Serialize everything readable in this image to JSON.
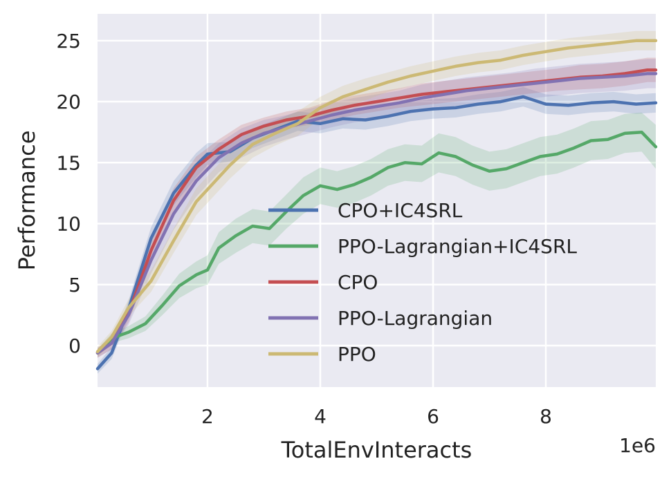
{
  "chart_data": {
    "type": "line",
    "title": "",
    "xlabel": "TotalEnvInteracts",
    "ylabel": "Performance",
    "x_scale_label": "1e6",
    "xlim": [
      0.05,
      9.95
    ],
    "ylim": [
      -3.4,
      27.2
    ],
    "xticks": [
      2,
      4,
      6,
      8
    ],
    "xtick_labels": [
      "2",
      "4",
      "6",
      "8"
    ],
    "yticks": [
      0,
      5,
      10,
      15,
      20,
      25
    ],
    "ytick_labels": [
      "0",
      "5",
      "10",
      "15",
      "20",
      "25"
    ],
    "grid": true,
    "legend_position": "lower-right",
    "colors": {
      "background": "#eaeaf2",
      "grid": "#ffffff"
    },
    "series": [
      {
        "name": "CPO+IC4SRL",
        "color": "#4c72b0",
        "x": [
          0.05,
          0.3,
          0.6,
          1.0,
          1.4,
          1.8,
          2.0,
          2.4,
          2.8,
          3.2,
          3.6,
          4.0,
          4.4,
          4.8,
          5.2,
          5.6,
          6.0,
          6.4,
          6.8,
          7.2,
          7.6,
          8.0,
          8.4,
          8.8,
          9.2,
          9.6,
          9.95
        ],
        "y": [
          -1.9,
          -0.6,
          3.0,
          8.8,
          12.5,
          14.8,
          15.7,
          15.9,
          17.0,
          17.7,
          18.4,
          18.2,
          18.6,
          18.5,
          18.8,
          19.2,
          19.4,
          19.5,
          19.8,
          20.0,
          20.4,
          19.8,
          19.7,
          19.9,
          20.0,
          19.8,
          19.9
        ],
        "band": [
          0.4,
          0.5,
          0.7,
          0.9,
          1.0,
          1.0,
          0.9,
          0.8,
          0.8,
          0.8,
          0.8,
          0.8,
          0.8,
          0.8,
          0.8,
          0.8,
          0.8,
          0.8,
          0.8,
          0.8,
          0.8,
          0.8,
          0.8,
          0.8,
          0.8,
          0.8,
          0.8
        ]
      },
      {
        "name": "PPO-Lagrangian+IC4SRL",
        "color": "#55a868",
        "x": [
          0.05,
          0.3,
          0.6,
          0.9,
          1.2,
          1.5,
          1.8,
          2.0,
          2.2,
          2.5,
          2.8,
          3.1,
          3.4,
          3.7,
          4.0,
          4.3,
          4.6,
          4.9,
          5.2,
          5.5,
          5.8,
          6.1,
          6.4,
          6.7,
          7.0,
          7.3,
          7.6,
          7.9,
          8.2,
          8.5,
          8.8,
          9.1,
          9.4,
          9.7,
          9.95
        ],
        "y": [
          -0.6,
          0.6,
          1.1,
          1.8,
          3.3,
          4.9,
          5.8,
          6.2,
          8.0,
          9.0,
          9.8,
          9.6,
          11.0,
          12.3,
          13.1,
          12.8,
          13.2,
          13.8,
          14.6,
          15.0,
          14.9,
          15.8,
          15.5,
          14.8,
          14.3,
          14.5,
          15.0,
          15.5,
          15.7,
          16.2,
          16.8,
          16.9,
          17.4,
          17.5,
          16.3
        ],
        "band": [
          0.3,
          0.4,
          0.5,
          0.6,
          0.8,
          1.0,
          1.1,
          1.2,
          1.3,
          1.4,
          1.4,
          1.4,
          1.4,
          1.5,
          1.5,
          1.5,
          1.5,
          1.5,
          1.5,
          1.5,
          1.5,
          1.6,
          1.6,
          1.6,
          1.6,
          1.6,
          1.6,
          1.6,
          1.6,
          1.6,
          1.6,
          1.6,
          1.6,
          1.6,
          1.8
        ]
      },
      {
        "name": "CPO",
        "color": "#c44e52",
        "x": [
          0.05,
          0.3,
          0.6,
          1.0,
          1.4,
          1.8,
          2.2,
          2.6,
          3.0,
          3.4,
          3.8,
          4.2,
          4.6,
          5.0,
          5.4,
          5.8,
          6.2,
          6.6,
          7.0,
          7.4,
          7.8,
          8.2,
          8.6,
          9.0,
          9.4,
          9.8,
          9.95
        ],
        "y": [
          -0.6,
          0.2,
          2.6,
          7.8,
          11.9,
          14.6,
          16.1,
          17.3,
          18.0,
          18.5,
          18.8,
          19.3,
          19.7,
          20.0,
          20.3,
          20.6,
          20.8,
          21.0,
          21.2,
          21.4,
          21.6,
          21.8,
          22.0,
          22.1,
          22.3,
          22.6,
          22.6
        ],
        "band": [
          0.4,
          0.5,
          0.7,
          0.9,
          1.0,
          0.9,
          0.8,
          0.8,
          0.7,
          0.7,
          0.7,
          0.8,
          0.8,
          0.8,
          0.8,
          0.9,
          0.9,
          0.9,
          0.9,
          0.9,
          0.9,
          0.9,
          1.0,
          1.0,
          1.0,
          1.0,
          1.0
        ]
      },
      {
        "name": "PPO-Lagrangian",
        "color": "#8172b2",
        "x": [
          0.05,
          0.3,
          0.6,
          1.0,
          1.4,
          1.8,
          2.2,
          2.6,
          3.0,
          3.4,
          3.8,
          4.2,
          4.6,
          5.0,
          5.4,
          5.8,
          6.2,
          6.6,
          7.0,
          7.4,
          7.8,
          8.2,
          8.6,
          9.0,
          9.4,
          9.8,
          9.95
        ],
        "y": [
          -0.6,
          0.2,
          2.5,
          7.0,
          10.8,
          13.5,
          15.4,
          16.6,
          17.4,
          17.9,
          18.4,
          18.9,
          19.3,
          19.6,
          19.9,
          20.3,
          20.6,
          20.9,
          21.1,
          21.3,
          21.5,
          21.7,
          21.9,
          22.0,
          22.1,
          22.3,
          22.3
        ],
        "band": [
          0.4,
          0.5,
          0.8,
          1.1,
          1.3,
          1.3,
          1.2,
          1.2,
          1.1,
          1.0,
          1.0,
          1.0,
          1.0,
          1.0,
          1.0,
          1.1,
          1.1,
          1.1,
          1.1,
          1.1,
          1.2,
          1.2,
          1.2,
          1.2,
          1.2,
          1.2,
          1.2
        ]
      },
      {
        "name": "PPO",
        "color": "#ccb974",
        "x": [
          0.05,
          0.3,
          0.6,
          1.0,
          1.4,
          1.8,
          2.0,
          2.4,
          2.8,
          3.2,
          3.6,
          4.0,
          4.4,
          4.8,
          5.2,
          5.6,
          6.0,
          6.4,
          6.8,
          7.2,
          7.6,
          8.0,
          8.4,
          8.8,
          9.2,
          9.6,
          9.95
        ],
        "y": [
          -0.5,
          0.7,
          3.1,
          5.3,
          8.6,
          11.8,
          12.8,
          14.8,
          16.5,
          17.4,
          18.2,
          19.5,
          20.4,
          21.0,
          21.6,
          22.1,
          22.5,
          22.9,
          23.2,
          23.4,
          23.8,
          24.1,
          24.4,
          24.6,
          24.8,
          25.0,
          25.0
        ],
        "band": [
          0.4,
          0.5,
          0.7,
          0.9,
          1.0,
          1.1,
          1.1,
          1.1,
          1.1,
          1.0,
          1.0,
          0.9,
          0.9,
          0.9,
          0.8,
          0.8,
          0.8,
          0.8,
          0.8,
          0.8,
          0.8,
          0.8,
          0.8,
          0.8,
          0.8,
          0.8,
          0.8
        ]
      }
    ]
  }
}
